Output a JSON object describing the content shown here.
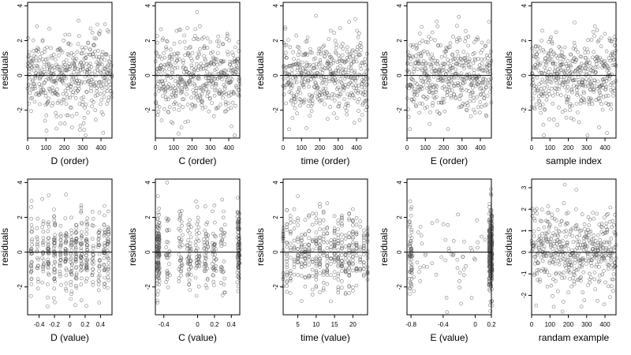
{
  "figure": {
    "y_axis_label": "residuals",
    "zero_reference_line": 0
  },
  "chart_data": [
    {
      "type": "scatter",
      "xlabel": "D (order)",
      "ylabel": "residuals",
      "x_range": [
        0,
        460
      ],
      "ylim": [
        -3.6,
        4.2
      ],
      "x_ticks": [
        0,
        100,
        200,
        300,
        400
      ],
      "y_ticks": [
        -2,
        0,
        2,
        4
      ],
      "n_points": 460,
      "reference_line_y": 0
    },
    {
      "type": "scatter",
      "xlabel": "C (order)",
      "ylabel": "residuals",
      "x_range": [
        0,
        460
      ],
      "ylim": [
        -3.6,
        4.2
      ],
      "x_ticks": [
        0,
        100,
        200,
        300,
        400
      ],
      "y_ticks": [
        -2,
        0,
        2,
        4
      ],
      "n_points": 460,
      "reference_line_y": 0
    },
    {
      "type": "scatter",
      "xlabel": "time (order)",
      "ylabel": "residuals",
      "x_range": [
        0,
        460
      ],
      "ylim": [
        -3.6,
        4.2
      ],
      "x_ticks": [
        0,
        100,
        200,
        300,
        400
      ],
      "y_ticks": [
        -2,
        0,
        2,
        4
      ],
      "n_points": 460,
      "reference_line_y": 0
    },
    {
      "type": "scatter",
      "xlabel": "E (order)",
      "ylabel": "residuals",
      "x_range": [
        0,
        460
      ],
      "ylim": [
        -3.6,
        4.2
      ],
      "x_ticks": [
        0,
        100,
        200,
        300,
        400
      ],
      "y_ticks": [
        -2,
        0,
        2,
        4
      ],
      "n_points": 460,
      "reference_line_y": 0
    },
    {
      "type": "scatter",
      "xlabel": "sample index",
      "ylabel": "residuals",
      "x_range": [
        0,
        460
      ],
      "ylim": [
        -3.6,
        4.2
      ],
      "x_ticks": [
        0,
        100,
        200,
        300,
        400
      ],
      "y_ticks": [
        -2,
        0,
        2,
        4
      ],
      "n_points": 460,
      "reference_line_y": 0
    },
    {
      "type": "scatter",
      "xlabel": "D (value)",
      "ylabel": "residuals",
      "x_range": [
        -0.55,
        0.55
      ],
      "ylim": [
        -3.6,
        4.2
      ],
      "x_ticks": [
        -0.4,
        -0.2,
        0.0,
        0.2,
        0.4
      ],
      "y_ticks": [
        -2,
        0,
        2,
        4
      ],
      "n_points": 460,
      "reference_line_y": 0
    },
    {
      "type": "scatter",
      "xlabel": "C (value)",
      "ylabel": "residuals",
      "x_range": [
        -0.5,
        0.5
      ],
      "ylim": [
        -3.6,
        4.2
      ],
      "x_ticks": [
        -0.4,
        0.0,
        0.2,
        0.4
      ],
      "y_ticks": [
        -2,
        0,
        2,
        4
      ],
      "n_points": 460,
      "reference_line_y": 0
    },
    {
      "type": "scatter",
      "xlabel": "time (value)",
      "ylabel": "residuals",
      "x_range": [
        1,
        24
      ],
      "ylim": [
        -3.6,
        4.2
      ],
      "x_ticks": [
        5,
        10,
        15,
        20
      ],
      "y_ticks": [
        -2,
        0,
        2,
        4
      ],
      "n_points": 460,
      "reference_line_y": 0
    },
    {
      "type": "scatter",
      "xlabel": "E (value)",
      "ylabel": "residuals",
      "x_range": [
        -0.85,
        0.2
      ],
      "ylim": [
        -3.6,
        4.2
      ],
      "x_ticks": [
        -0.8,
        -0.4,
        0.0,
        0.2
      ],
      "y_ticks": [
        -2,
        0,
        2,
        4
      ],
      "n_points": 460,
      "reference_line_y": 0
    },
    {
      "type": "scatter",
      "xlabel": "randam example",
      "ylabel": "residuals",
      "x_range": [
        0,
        460
      ],
      "ylim": [
        -2.9,
        3.4
      ],
      "x_ticks": [
        0,
        100,
        200,
        300,
        400
      ],
      "y_ticks": [
        -2,
        -1,
        0,
        1,
        2,
        3
      ],
      "n_points": 460,
      "reference_line_y": 0
    }
  ]
}
